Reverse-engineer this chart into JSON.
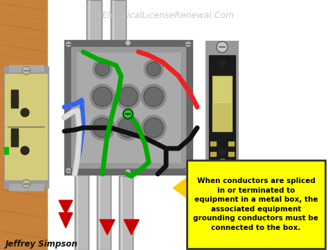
{
  "watermark": "©ElectricalLicenseRenewal.Com",
  "caption": "Jeffrey Simpson",
  "annotation_text": "When conductors are spliced\nin or terminated to\nequipment in a metal box, the\nassociated equipment\ngrounding conductors must be\nconnected to the box.",
  "annotation_box_color": "#FFFF00",
  "annotation_text_color": "#000000",
  "annotation_border_color": "#333333",
  "background_color": "#FFFFFF",
  "wood_color": "#C8813A",
  "wood_dark": "#A0622A",
  "box_outer_color": "#888888",
  "box_inner_color": "#AAAAAA",
  "box_rim_color": "#666666",
  "knockout_color": "#777777",
  "knockout_dark": "#555555",
  "outlet_body_color": "#D4CC7A",
  "outlet_slot_color": "#2A2A1A",
  "outlet_screw_color": "#BBBBAA",
  "switch_bracket_color": "#AAAAAA",
  "switch_body_color": "#1A1A1A",
  "switch_paddle_color": "#D4CC7A",
  "switch_screw_color": "#AAAAAA",
  "wire_red": "#EE2222",
  "wire_black": "#111111",
  "wire_white": "#DDDDDD",
  "wire_green": "#00AA00",
  "wire_blue": "#3366EE",
  "conduit_color": "#BBBBBB",
  "conduit_edge": "#888888",
  "conduit_hi": "#DDDDDD",
  "red_arrow_color": "#CC0000",
  "green_screw_color": "#33BB33",
  "fig_width": 4.74,
  "fig_height": 3.62,
  "dpi": 100
}
